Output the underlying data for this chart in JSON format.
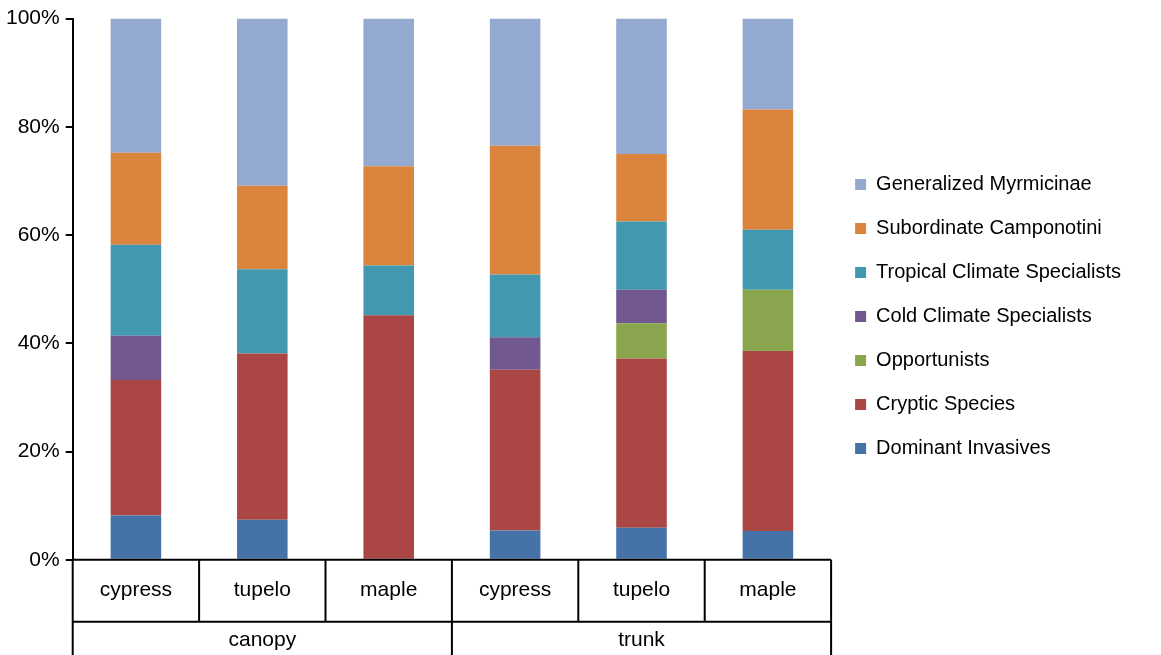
{
  "chart_data": {
    "type": "bar",
    "stacked": true,
    "categories": [
      "cypress",
      "tupelo",
      "maple",
      "cypress",
      "tupelo",
      "maple"
    ],
    "annotations": [
      "canopy",
      "trunk"
    ],
    "series": [
      {
        "name": "Dominant Invasives",
        "color": "#4572a7",
        "values": [
          8.2,
          7.4,
          0,
          5.4,
          5.9,
          5.3
        ]
      },
      {
        "name": "Cryptic Species",
        "color": "#aa4643",
        "values": [
          25.0,
          30.7,
          45.2,
          29.7,
          31.3,
          33.3
        ]
      },
      {
        "name": "Opportunists",
        "color": "#89a54e",
        "values": [
          0,
          0,
          0,
          0,
          6.5,
          11.3
        ]
      },
      {
        "name": "Cold Climate Specialists",
        "color": "#71588f",
        "values": [
          8.2,
          0,
          0,
          6.0,
          6.2,
          0
        ]
      },
      {
        "name": "Tropical Climate Specialists",
        "color": "#4198af",
        "values": [
          16.8,
          15.6,
          9.2,
          11.6,
          12.6,
          11.1
        ]
      },
      {
        "name": "Subordinate Camponotini",
        "color": "#db843d",
        "values": [
          17.0,
          15.4,
          18.3,
          23.8,
          12.5,
          22.2
        ]
      },
      {
        "name": "Generalized Myrmicinae",
        "color": "#93a9cf",
        "values": [
          24.8,
          30.9,
          27.3,
          23.5,
          25.0,
          16.8
        ]
      }
    ],
    "ylim": [
      0,
      100
    ],
    "yticks": [
      {
        "value": 0,
        "label": "0%"
      },
      {
        "value": 20,
        "label": "20%"
      },
      {
        "value": 40,
        "label": "40%"
      },
      {
        "value": 60,
        "label": "60%"
      },
      {
        "value": 80,
        "label": "80%"
      },
      {
        "value": 100,
        "label": "100%"
      }
    ],
    "legend": "right",
    "grid": false
  }
}
